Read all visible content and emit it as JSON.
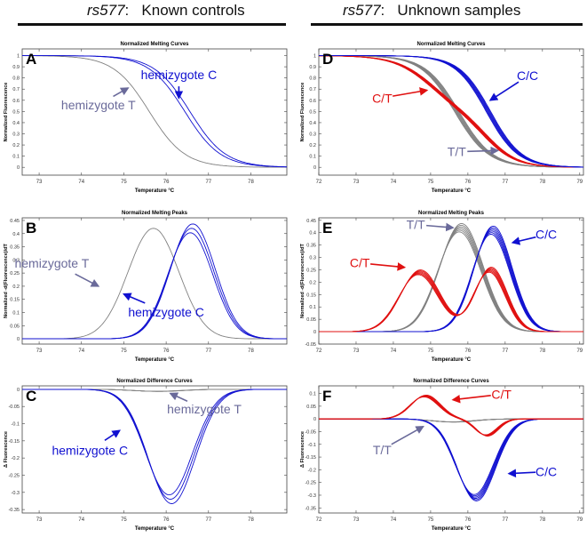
{
  "headers": {
    "left": {
      "snp": "rs577",
      "rest": ":   Known controls"
    },
    "right": {
      "snp": "rs577",
      "rest": ":   Unknown samples"
    }
  },
  "colors": {
    "blue": "#1010d0",
    "gray": "#808080",
    "red": "#e01010",
    "annot_gray": "#6a6a9a"
  },
  "chart_data": [
    {
      "panel": "A",
      "type": "line",
      "title": "Normalized Melting Curves",
      "xlabel": "Temperature °C",
      "ylabel": "Normalized Fluorescence",
      "xlim": [
        72.6,
        78.85
      ],
      "ylim": [
        -0.07,
        1.06
      ],
      "xticks": [
        73,
        74,
        75,
        76,
        77,
        78
      ],
      "yticks": [
        "0",
        "0.1",
        "0.2",
        "0.3",
        "0.4",
        "0.5",
        "0.6",
        "0.7",
        "0.8",
        "0.9",
        "1"
      ],
      "series": [
        {
          "name": "hemizygote T",
          "color": "gray",
          "model": "melt",
          "tm": 75.6,
          "w": 0.42,
          "replicates": 1
        },
        {
          "name": "hemizygote C",
          "color": "blue",
          "model": "melt",
          "tm": 76.5,
          "w": 0.42,
          "replicates": 2
        }
      ],
      "annotations": [
        {
          "text": "hemizygote C",
          "color": "blue",
          "at": [
            76.3,
            0.79
          ],
          "to": [
            76.3,
            0.62
          ]
        },
        {
          "text": "hemizygote T",
          "color": "annot_gray",
          "at": [
            74.4,
            0.52
          ],
          "to": [
            75.1,
            0.71
          ]
        }
      ]
    },
    {
      "panel": "B",
      "type": "line",
      "title": "Normalized Melting Peaks",
      "xlabel": "Temperature °C",
      "ylabel": "Normalized -d(Fluorescence)/dT",
      "xlim": [
        72.6,
        78.85
      ],
      "ylim": [
        -0.02,
        0.46
      ],
      "xticks": [
        73,
        74,
        75,
        76,
        77,
        78
      ],
      "yticks": [
        "0",
        "0.05",
        "0.1",
        "0.15",
        "0.2",
        "0.25",
        "0.3",
        "0.35",
        "0.4",
        "0.45"
      ],
      "series": [
        {
          "name": "hemizygote T",
          "color": "gray",
          "model": "peak",
          "peaks": [
            [
              75.7,
              0.42,
              0.85
            ]
          ],
          "replicates": 1
        },
        {
          "name": "hemizygote C",
          "color": "blue",
          "model": "peak",
          "peaks": [
            [
              76.6,
              0.42,
              0.75
            ]
          ],
          "replicates": 3
        }
      ],
      "annotations": [
        {
          "text": "hemizygote T",
          "color": "annot_gray",
          "at": [
            73.3,
            0.27
          ],
          "to": [
            74.4,
            0.2
          ]
        },
        {
          "text": "hemizygote C",
          "color": "blue",
          "at": [
            76.0,
            0.085
          ],
          "to": [
            75.0,
            0.17
          ]
        }
      ]
    },
    {
      "panel": "C",
      "type": "line",
      "title": "Normalized Difference Curves",
      "xlabel": "Temperature °C",
      "ylabel": "Δ Fluorescence",
      "xlim": [
        72.6,
        78.85
      ],
      "ylim": [
        -0.36,
        0.01
      ],
      "xticks": [
        73,
        74,
        75,
        76,
        77,
        78
      ],
      "yticks": [
        "-0.35",
        "-0.3",
        "-0.25",
        "-0.2",
        "-0.15",
        "-0.1",
        "-0.05",
        "0"
      ],
      "series": [
        {
          "name": "hemizygote T",
          "color": "gray",
          "model": "peak",
          "peaks": [
            [
              75.8,
              -0.006,
              0.8
            ]
          ],
          "replicates": 4
        },
        {
          "name": "hemizygote C",
          "color": "blue",
          "model": "peak",
          "peaks": [
            [
              76.1,
              -0.32,
              0.78
            ]
          ],
          "replicates": 3
        }
      ],
      "annotations": [
        {
          "text": "hemizygote T",
          "color": "annot_gray",
          "at": [
            76.9,
            -0.07
          ],
          "to": [
            76.1,
            -0.012
          ]
        },
        {
          "text": "hemizygote C",
          "color": "blue",
          "at": [
            74.2,
            -0.19
          ],
          "to": [
            74.9,
            -0.12
          ]
        }
      ]
    },
    {
      "panel": "D",
      "type": "line",
      "title": "Normalized Melting Curves",
      "xlabel": "Temperature °C",
      "ylabel": "Normalized Fluorescence",
      "xlim": [
        72,
        79.1
      ],
      "ylim": [
        -0.07,
        1.06
      ],
      "xticks": [
        72,
        73,
        74,
        75,
        76,
        77,
        78,
        79
      ],
      "yticks": [
        "0",
        "0.1",
        "0.2",
        "0.3",
        "0.4",
        "0.5",
        "0.6",
        "0.7",
        "0.8",
        "0.9",
        "1"
      ],
      "series": [
        {
          "name": "T/T",
          "color": "gray",
          "model": "melt",
          "tm": 75.7,
          "w": 0.45,
          "replicates": 6
        },
        {
          "name": "C/T",
          "color": "red",
          "model": "melt2",
          "tm": 75.7,
          "w": 0.6,
          "replicates": 6
        },
        {
          "name": "C/C",
          "color": "blue",
          "model": "melt",
          "tm": 76.55,
          "w": 0.42,
          "replicates": 6
        }
      ],
      "annotations": [
        {
          "text": "C/C",
          "color": "blue",
          "at": [
            77.6,
            0.78
          ],
          "to": [
            76.6,
            0.6
          ]
        },
        {
          "text": "C/T",
          "color": "red",
          "at": [
            73.7,
            0.58
          ],
          "to": [
            74.9,
            0.69
          ]
        },
        {
          "text": "T/T",
          "color": "annot_gray",
          "at": [
            75.7,
            0.1
          ],
          "to": [
            76.8,
            0.15
          ]
        }
      ]
    },
    {
      "panel": "E",
      "type": "line",
      "title": "Normalized Melting Peaks",
      "xlabel": "Temperature °C",
      "ylabel": "Normalized -d(Fluorescence)/dT",
      "xlim": [
        72,
        79.1
      ],
      "ylim": [
        -0.05,
        0.46
      ],
      "xticks": [
        72,
        73,
        74,
        75,
        76,
        77,
        78,
        79
      ],
      "yticks": [
        "-0.05",
        "0",
        "0.05",
        "0.1",
        "0.15",
        "0.2",
        "0.25",
        "0.3",
        "0.35",
        "0.4",
        "0.45"
      ],
      "series": [
        {
          "name": "T/T",
          "color": "gray",
          "model": "peak",
          "peaks": [
            [
              75.8,
              0.42,
              0.82
            ]
          ],
          "replicates": 6
        },
        {
          "name": "C/C",
          "color": "blue",
          "model": "peak",
          "peaks": [
            [
              76.65,
              0.41,
              0.72
            ]
          ],
          "replicates": 6
        },
        {
          "name": "C/T",
          "color": "red",
          "model": "peak",
          "peaks": [
            [
              74.7,
              0.24,
              0.75
            ],
            [
              76.6,
              0.25,
              0.6
            ]
          ],
          "replicates": 6
        }
      ],
      "annotations": [
        {
          "text": "T/T",
          "color": "annot_gray",
          "at": [
            74.6,
            0.415
          ],
          "to": [
            75.6,
            0.42
          ]
        },
        {
          "text": "C/C",
          "color": "blue",
          "at": [
            78.1,
            0.375
          ],
          "to": [
            77.2,
            0.36
          ]
        },
        {
          "text": "C/T",
          "color": "red",
          "at": [
            73.1,
            0.26
          ],
          "to": [
            74.3,
            0.26
          ]
        }
      ]
    },
    {
      "panel": "F",
      "type": "line",
      "title": "Normalized Difference Curves",
      "xlabel": "Temperature °C",
      "ylabel": "Δ Fluorescence",
      "xlim": [
        72,
        79.1
      ],
      "ylim": [
        -0.37,
        0.13
      ],
      "xticks": [
        72,
        73,
        74,
        75,
        76,
        77,
        78,
        79
      ],
      "yticks": [
        "-0.35",
        "-0.3",
        "-0.25",
        "-0.2",
        "-0.15",
        "-0.1",
        "-0.05",
        "0",
        "0.05",
        "0.1"
      ],
      "series": [
        {
          "name": "T/T",
          "color": "gray",
          "model": "peak",
          "peaks": [
            [
              75.6,
              -0.012,
              0.8
            ]
          ],
          "replicates": 8
        },
        {
          "name": "C/C",
          "color": "blue",
          "model": "peak",
          "peaks": [
            [
              76.2,
              -0.31,
              0.72
            ]
          ],
          "replicates": 6
        },
        {
          "name": "C/T",
          "color": "red",
          "model": "peak",
          "peaks": [
            [
              74.85,
              0.09,
              0.55
            ],
            [
              76.5,
              -0.065,
              0.42
            ]
          ],
          "replicates": 6
        }
      ],
      "annotations": [
        {
          "text": "C/T",
          "color": "red",
          "at": [
            76.9,
            0.08
          ],
          "to": [
            75.6,
            0.075
          ]
        },
        {
          "text": "C/C",
          "color": "blue",
          "at": [
            78.1,
            -0.225
          ],
          "to": [
            77.1,
            -0.215
          ]
        },
        {
          "text": "T/T",
          "color": "annot_gray",
          "at": [
            73.7,
            -0.14
          ],
          "to": [
            74.8,
            -0.03
          ]
        }
      ]
    }
  ]
}
